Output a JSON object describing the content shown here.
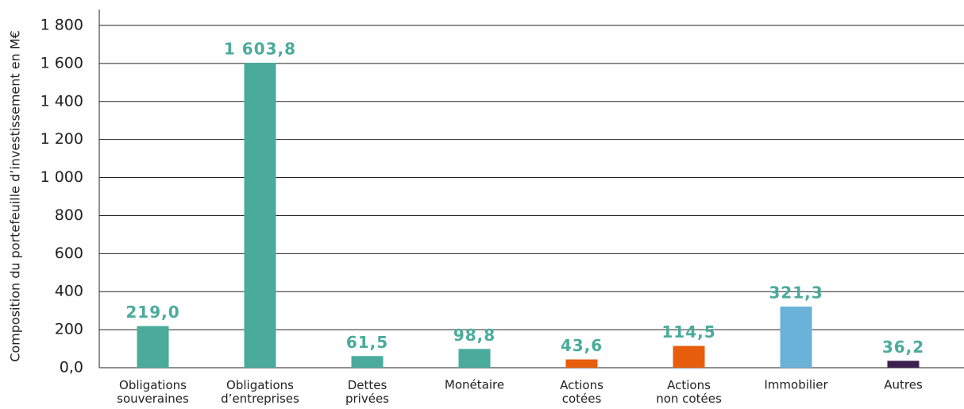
{
  "chart_data": {
    "type": "bar",
    "y_label": "Composition du portefeuille d’investissement en M€",
    "categories": [
      "Obligations souveraines",
      "Obligations d’entreprises",
      "Dettes privées",
      "Monétaire",
      "Actions cotées",
      "Actions non cotées",
      "Immobilier",
      "Autres"
    ],
    "values": [
      219.0,
      1603.8,
      61.5,
      98.8,
      43.6,
      114.5,
      321.3,
      36.2
    ],
    "value_labels": [
      "219,0",
      "1 603,8",
      "61,5",
      "98,8",
      "43,6",
      "114,5",
      "321,3",
      "36,2"
    ],
    "colors": [
      "#4aab9c",
      "#4aab9c",
      "#4aab9c",
      "#4aab9c",
      "#e85d0c",
      "#e85d0c",
      "#6ab2d8",
      "#3a1f4f"
    ],
    "value_label_color": "#4aab9c",
    "ylim": [
      0,
      1800
    ],
    "yticks": [
      {
        "value": 0,
        "label": "0,0"
      },
      200,
      400,
      600,
      800,
      {
        "value": 1000,
        "label": "1 000"
      },
      {
        "value": 1200,
        "label": "1 200"
      },
      {
        "value": 1400,
        "label": "1 400"
      },
      {
        "value": 1600,
        "label": "1 600"
      },
      {
        "value": 1800,
        "label": "1 800"
      }
    ],
    "grid": true
  }
}
